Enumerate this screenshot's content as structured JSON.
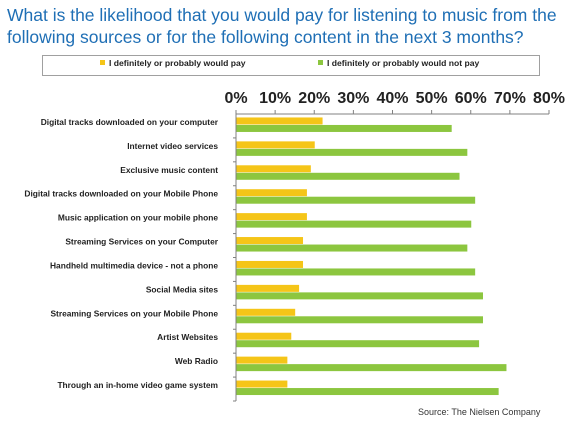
{
  "title": "What is the likelihood that you would pay for listening to music from the following sources or for the following content in the next 3 months?",
  "source": "Source: The Nielsen Company",
  "colors": {
    "would_pay": "#f5c518",
    "would_not_pay": "#8cc63f",
    "title": "#1f6fb5",
    "axis": "#808080"
  },
  "chart_data": {
    "type": "bar",
    "orientation": "horizontal",
    "title": "What is the likelihood that you would pay for listening to music from the following sources or for the following content in the next 3 months?",
    "xlim": [
      0,
      80
    ],
    "tick_labels": [
      "0%",
      "10%",
      "20%",
      "30%",
      "40%",
      "50%",
      "60%",
      "70%",
      "80%"
    ],
    "tick_values": [
      0,
      10,
      20,
      30,
      40,
      50,
      60,
      70,
      80
    ],
    "legend_placement": "top",
    "grid": false,
    "categories": [
      "Digital tracks downloaded on your computer",
      "Internet video services",
      "Exclusive music content",
      "Digital tracks downloaded on your Mobile Phone",
      "Music application on your mobile phone",
      "Streaming Services on your Computer",
      "Handheld multimedia device - not a phone",
      "Social Media sites",
      "Streaming Services on your Mobile Phone",
      "Artist Websites",
      "Web Radio",
      "Through an in-home video game system"
    ],
    "series": [
      {
        "name": "I definitely or probably would pay",
        "color": "#f5c518",
        "values": [
          22,
          20,
          19,
          18,
          18,
          17,
          17,
          16,
          15,
          14,
          13,
          13
        ]
      },
      {
        "name": "I definitely or probably would not pay",
        "color": "#8cc63f",
        "values": [
          55,
          59,
          57,
          61,
          60,
          59,
          61,
          63,
          63,
          62,
          69,
          67
        ]
      }
    ]
  }
}
